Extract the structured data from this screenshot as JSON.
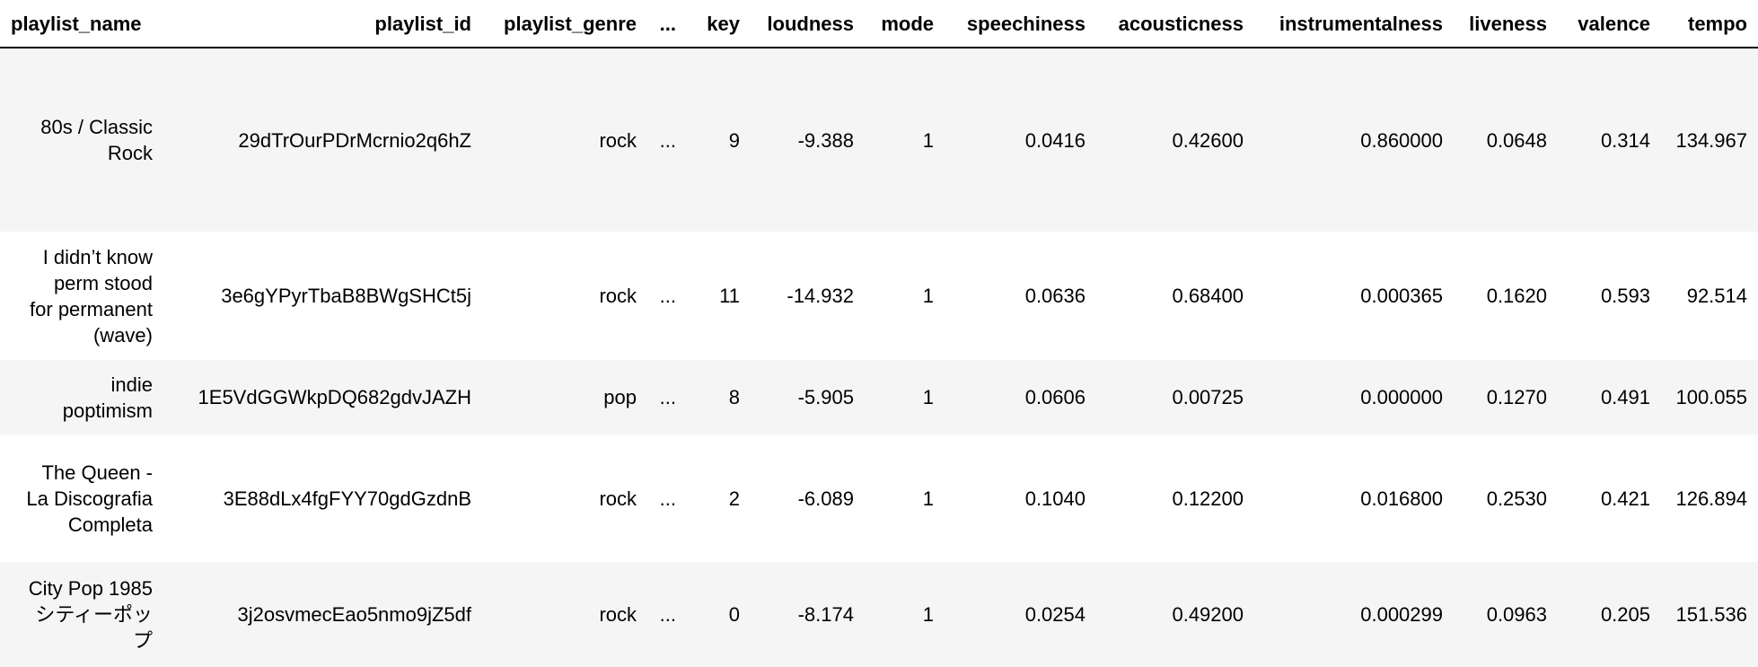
{
  "table": {
    "columns": [
      "playlist_name",
      "playlist_id",
      "playlist_genre",
      "...",
      "key",
      "loudness",
      "mode",
      "speechiness",
      "acousticness",
      "instrumentalness",
      "liveness",
      "valence",
      "tempo"
    ],
    "rows": [
      {
        "name_lines": [
          "80s / Classic",
          "Rock"
        ],
        "cells": [
          "29dTrOurPDrMcrnio2q6hZ",
          "rock",
          "...",
          "9",
          "-9.388",
          "1",
          "0.0416",
          "0.42600",
          "0.860000",
          "0.0648",
          "0.314",
          "134.967"
        ]
      },
      {
        "name_lines": [
          "I didn’t know",
          "perm stood",
          "for permanent",
          "(wave)"
        ],
        "cells": [
          "3e6gYPyrTbaB8BWgSHCt5j",
          "rock",
          "...",
          "11",
          "-14.932",
          "1",
          "0.0636",
          "0.68400",
          "0.000365",
          "0.1620",
          "0.593",
          "92.514"
        ]
      },
      {
        "name_lines": [
          "indie",
          "poptimism"
        ],
        "cells": [
          "1E5VdGGWkpDQ682gdvJAZH",
          "pop",
          "...",
          "8",
          "-5.905",
          "1",
          "0.0606",
          "0.00725",
          "0.000000",
          "0.1270",
          "0.491",
          "100.055"
        ]
      },
      {
        "name_lines": [
          "The Queen -",
          "La Discografia",
          "Completa"
        ],
        "cells": [
          "3E88dLx4fgFYY70gdGzdnB",
          "rock",
          "...",
          "2",
          "-6.089",
          "1",
          "0.1040",
          "0.12200",
          "0.016800",
          "0.2530",
          "0.421",
          "126.894"
        ]
      },
      {
        "name_lines": [
          "City Pop 1985",
          "シティーポッ",
          "プ"
        ],
        "cells": [
          "3j2osvmecEao5nmo9jZ5df",
          "rock",
          "...",
          "0",
          "-8.174",
          "1",
          "0.0254",
          "0.49200",
          "0.000299",
          "0.0963",
          "0.205",
          "151.536"
        ]
      }
    ]
  }
}
